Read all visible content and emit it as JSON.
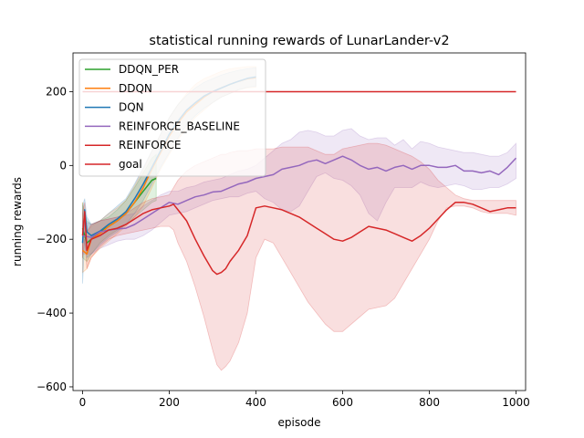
{
  "chart_data": {
    "type": "line",
    "title": "statistical running rewards of LunarLander-v2",
    "xlabel": "episode",
    "ylabel": "running rewards",
    "xlim": [
      -22,
      1022
    ],
    "ylim": [
      -610,
      305
    ],
    "xticks": [
      0,
      200,
      400,
      600,
      800,
      1000
    ],
    "yticks": [
      -600,
      -400,
      -200,
      0,
      200
    ],
    "legend_position": "top-left",
    "grid": false,
    "series": [
      {
        "name": "DDQN_PER",
        "color": "#2ca02c",
        "x": [
          0,
          10,
          20,
          40,
          60,
          80,
          100,
          120,
          140,
          160,
          170
        ],
        "y": [
          -170,
          -210,
          -200,
          -180,
          -165,
          -150,
          -130,
          -100,
          -70,
          -40,
          -35
        ],
        "band_low": [
          -250,
          -260,
          -240,
          -210,
          -190,
          -175,
          -160,
          -140,
          -120,
          -100,
          -95
        ],
        "band_high": [
          -100,
          -150,
          -160,
          -150,
          -140,
          -120,
          -95,
          -60,
          -20,
          20,
          30
        ]
      },
      {
        "name": "DDQN",
        "color": "#ff7f0e",
        "x": [
          0,
          10,
          20,
          40,
          60,
          80,
          100,
          120,
          140,
          160,
          180,
          200,
          220,
          240,
          260,
          280,
          300,
          320,
          340,
          360,
          380,
          400
        ],
        "y": [
          -230,
          -240,
          -200,
          -185,
          -165,
          -150,
          -130,
          -100,
          -60,
          -10,
          35,
          80,
          115,
          145,
          165,
          185,
          200,
          210,
          220,
          228,
          235,
          238
        ],
        "band_low": [
          -290,
          -280,
          -250,
          -225,
          -205,
          -185,
          -165,
          -140,
          -110,
          -60,
          -10,
          30,
          70,
          100,
          130,
          150,
          170,
          185,
          195,
          205,
          210,
          212
        ],
        "band_high": [
          -100,
          -180,
          -165,
          -150,
          -130,
          -115,
          -95,
          -55,
          -10,
          40,
          85,
          130,
          165,
          195,
          220,
          235,
          245,
          255,
          262,
          265,
          268,
          268
        ]
      },
      {
        "name": "DQN",
        "color": "#1f77b4",
        "x": [
          0,
          5,
          10,
          20,
          40,
          60,
          80,
          100,
          120,
          140,
          160,
          180,
          200,
          220,
          240,
          260,
          280,
          300,
          320,
          340,
          360,
          380,
          400
        ],
        "y": [
          -210,
          -120,
          -180,
          -190,
          -178,
          -160,
          -145,
          -125,
          -90,
          -50,
          -5,
          40,
          85,
          120,
          150,
          170,
          188,
          200,
          210,
          220,
          228,
          236,
          240
        ],
        "band_low": [
          -320,
          -200,
          -250,
          -240,
          -215,
          -195,
          -180,
          -160,
          -130,
          -95,
          -50,
          -5,
          35,
          75,
          110,
          135,
          155,
          170,
          185,
          195,
          205,
          212,
          215
        ],
        "band_high": [
          -110,
          -90,
          -140,
          -160,
          -150,
          -130,
          -110,
          -90,
          -50,
          -5,
          40,
          85,
          130,
          165,
          190,
          210,
          225,
          235,
          245,
          252,
          258,
          262,
          265
        ]
      },
      {
        "name": "REINFORCE_BASELINE",
        "color": "#9467bd",
        "x": [
          0,
          20,
          40,
          60,
          80,
          100,
          120,
          140,
          160,
          180,
          200,
          220,
          240,
          260,
          280,
          300,
          320,
          340,
          360,
          380,
          400,
          420,
          440,
          460,
          480,
          500,
          520,
          540,
          560,
          580,
          600,
          620,
          640,
          660,
          680,
          700,
          720,
          740,
          760,
          780,
          800,
          820,
          840,
          860,
          880,
          900,
          920,
          940,
          960,
          980,
          1000
        ],
        "y": [
          -190,
          -195,
          -180,
          -175,
          -172,
          -170,
          -160,
          -145,
          -130,
          -115,
          -100,
          -105,
          -95,
          -85,
          -80,
          -72,
          -70,
          -60,
          -50,
          -45,
          -35,
          -30,
          -25,
          -10,
          -5,
          0,
          10,
          15,
          5,
          15,
          25,
          15,
          0,
          -10,
          -5,
          -15,
          -5,
          0,
          -10,
          0,
          0,
          -5,
          -5,
          0,
          -15,
          -15,
          -20,
          -15,
          -25,
          -5,
          20
        ],
        "band_low": [
          -240,
          -240,
          -225,
          -215,
          -205,
          -200,
          -200,
          -190,
          -175,
          -155,
          -135,
          -130,
          -125,
          -115,
          -105,
          -95,
          -90,
          -85,
          -85,
          -75,
          -70,
          -90,
          -100,
          -120,
          -125,
          -110,
          -70,
          -30,
          -20,
          -35,
          -40,
          -55,
          -80,
          -130,
          -150,
          -100,
          -60,
          -60,
          -60,
          -45,
          -55,
          -60,
          -55,
          -50,
          -55,
          -65,
          -65,
          -60,
          -60,
          -50,
          -35
        ],
        "band_high": [
          -150,
          -160,
          -150,
          -145,
          -140,
          -135,
          -130,
          -110,
          -95,
          -80,
          -70,
          -70,
          -60,
          -55,
          -45,
          -40,
          -35,
          -25,
          -15,
          -10,
          0,
          20,
          40,
          60,
          70,
          90,
          95,
          90,
          80,
          80,
          95,
          100,
          80,
          70,
          75,
          75,
          55,
          70,
          45,
          65,
          60,
          50,
          45,
          40,
          35,
          35,
          30,
          25,
          25,
          35,
          60
        ]
      },
      {
        "name": "REINFORCE",
        "color": "#d62728",
        "x": [
          0,
          5,
          10,
          20,
          40,
          60,
          80,
          100,
          120,
          140,
          160,
          180,
          200,
          210,
          220,
          240,
          260,
          280,
          300,
          310,
          320,
          330,
          340,
          360,
          380,
          400,
          420,
          440,
          460,
          480,
          500,
          520,
          540,
          560,
          580,
          600,
          620,
          640,
          660,
          680,
          700,
          720,
          740,
          760,
          780,
          800,
          820,
          840,
          860,
          880,
          900,
          920,
          940,
          960,
          980,
          1000
        ],
        "y": [
          -190,
          -125,
          -230,
          -200,
          -190,
          -175,
          -170,
          -160,
          -145,
          -130,
          -120,
          -115,
          -110,
          -105,
          -120,
          -150,
          -200,
          -245,
          -285,
          -295,
          -290,
          -280,
          -260,
          -230,
          -190,
          -115,
          -110,
          -115,
          -120,
          -130,
          -140,
          -155,
          -170,
          -185,
          -200,
          -205,
          -195,
          -180,
          -165,
          -170,
          -175,
          -185,
          -195,
          -205,
          -190,
          -170,
          -145,
          -120,
          -100,
          -100,
          -105,
          -115,
          -125,
          -120,
          -115,
          -115
        ],
        "band_low": [
          -250,
          -200,
          -280,
          -250,
          -220,
          -200,
          -190,
          -185,
          -180,
          -175,
          -170,
          -165,
          -165,
          -175,
          -210,
          -260,
          -330,
          -410,
          -500,
          -540,
          -555,
          -545,
          -530,
          -480,
          -400,
          -250,
          -200,
          -210,
          -250,
          -290,
          -330,
          -370,
          -400,
          -430,
          -450,
          -450,
          -430,
          -410,
          -390,
          -385,
          -380,
          -360,
          -320,
          -280,
          -240,
          -200,
          -150,
          -115,
          -110,
          -110,
          -115,
          -125,
          -130,
          -130,
          -130,
          -135
        ],
        "band_high": [
          -130,
          -100,
          -180,
          -160,
          -150,
          -145,
          -140,
          -130,
          -115,
          -100,
          -90,
          -85,
          -80,
          -60,
          -40,
          -15,
          0,
          10,
          20,
          25,
          30,
          30,
          35,
          40,
          40,
          45,
          45,
          45,
          50,
          50,
          50,
          50,
          40,
          30,
          30,
          45,
          50,
          55,
          60,
          60,
          55,
          45,
          35,
          25,
          10,
          -10,
          -40,
          -60,
          -80,
          -90,
          -95,
          -95,
          -95,
          -95,
          -95,
          -95
        ]
      },
      {
        "name": "goal",
        "color": "#d62728",
        "x": [
          0,
          1000
        ],
        "y": [
          200,
          200
        ]
      }
    ]
  }
}
